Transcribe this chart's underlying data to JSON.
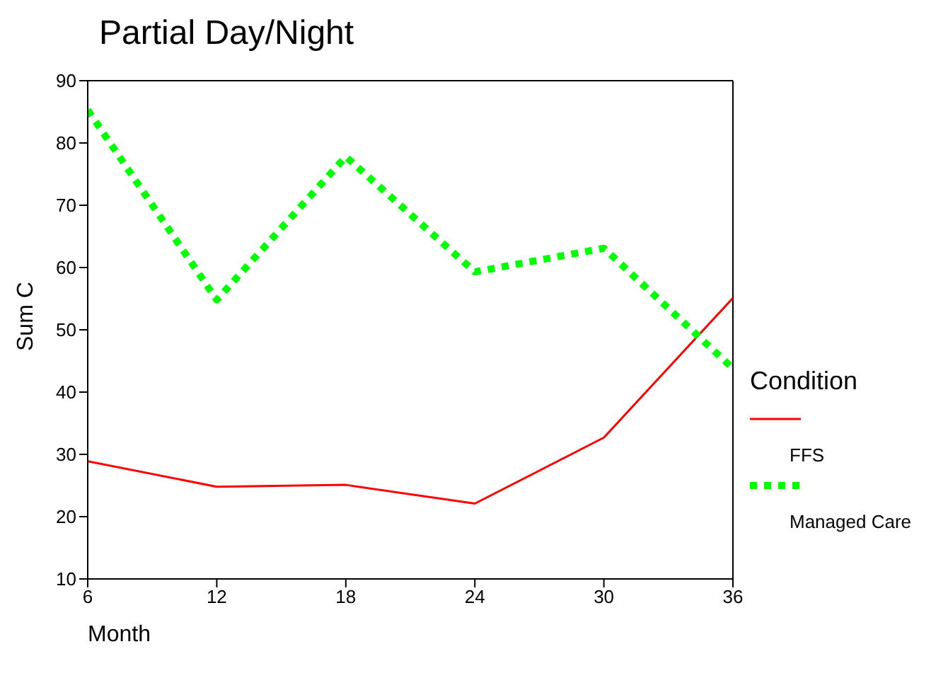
{
  "chart_data": {
    "type": "line",
    "title": "Partial Day/Night",
    "xlabel": "Month",
    "ylabel": "Sum C",
    "legend_title": "Condition",
    "x": [
      6,
      12,
      18,
      24,
      30,
      36
    ],
    "series": [
      {
        "name": "FFS",
        "color": "#ff0000",
        "line_style": "solid",
        "values": [
          28.9,
          24.8,
          25.1,
          22.1,
          32.7,
          55.1
        ]
      },
      {
        "name": "Managed Care",
        "color": "#00ff00",
        "line_style": "dotted",
        "values": [
          85.3,
          54.8,
          77.8,
          59.3,
          63.1,
          43.8
        ]
      }
    ],
    "xlim": [
      6,
      36
    ],
    "xticks": [
      6,
      12,
      18,
      24,
      30,
      36
    ],
    "ylim": [
      10,
      90
    ],
    "yticks": [
      10,
      20,
      30,
      40,
      50,
      60,
      70,
      80,
      90
    ],
    "grid": false,
    "legend": "right",
    "marker": "none"
  }
}
